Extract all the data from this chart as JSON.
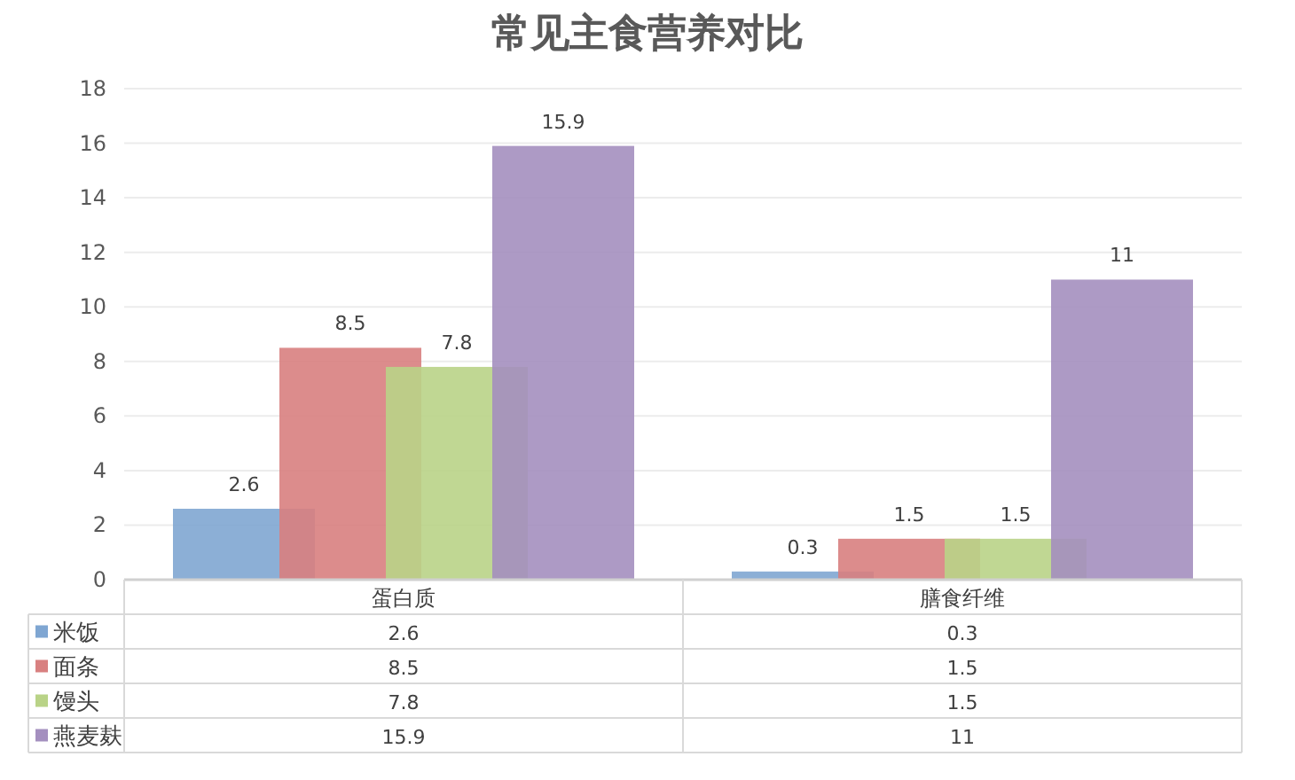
{
  "chart_data": {
    "type": "bar",
    "title": "常见主食营养对比",
    "categories": [
      "蛋白质",
      "膳食纤维"
    ],
    "series": [
      {
        "name": "米饭",
        "color": "#7fa6d2",
        "values": [
          2.6,
          0.3
        ],
        "value_labels": [
          "2.6",
          "0.3"
        ]
      },
      {
        "name": "面条",
        "color": "#d88080",
        "values": [
          8.5,
          1.5
        ],
        "value_labels": [
          "8.5",
          "1.5"
        ]
      },
      {
        "name": "馒头",
        "color": "#b9d387",
        "values": [
          7.8,
          1.5
        ],
        "value_labels": [
          "7.8",
          "1.5"
        ]
      },
      {
        "name": "燕麦麸",
        "color": "#a48fbf",
        "values": [
          15.9,
          11
        ],
        "value_labels": [
          "15.9",
          "11"
        ]
      }
    ],
    "ylim": [
      0,
      18
    ],
    "yticks": [
      0,
      2,
      4,
      6,
      8,
      10,
      12,
      14,
      16,
      18
    ],
    "annotations": [
      "2.6",
      "0.3",
      "8.5",
      "1.5",
      "7.8",
      "1.5",
      "15.9",
      "11"
    ],
    "grid": "y",
    "legend": "bottom"
  }
}
